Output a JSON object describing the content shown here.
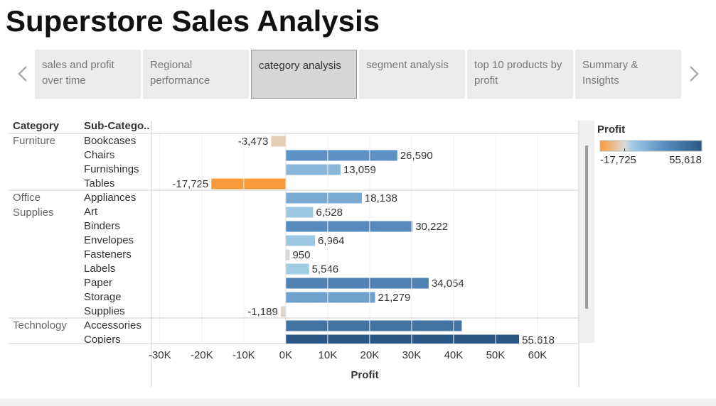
{
  "title": "Superstore Sales Analysis",
  "tabs": {
    "items": [
      "sales and profit over time",
      "Regional performance",
      "category analysis",
      "segment analysis",
      "top 10 products by profit",
      "Summary & Insights"
    ],
    "selected": 2
  },
  "chart_data": {
    "type": "bar",
    "orientation": "horizontal",
    "row_headers": [
      "Category",
      "Sub-Catego.."
    ],
    "x_label": "Profit",
    "groups": [
      {
        "name": "Furniture",
        "categories": [
          "Bookcases",
          "Chairs",
          "Furnishings",
          "Tables"
        ],
        "values": [
          -3473,
          26590,
          13059,
          -17725
        ],
        "value_labels": [
          "-3,473",
          "26,590",
          "13,059",
          "-17,725"
        ]
      },
      {
        "name": "Office Supplies",
        "categories": [
          "Appliances",
          "Art",
          "Binders",
          "Envelopes",
          "Fasteners",
          "Labels",
          "Paper",
          "Storage",
          "Supplies"
        ],
        "values": [
          18138,
          6528,
          30222,
          6964,
          950,
          5546,
          34054,
          21279,
          -1189
        ],
        "value_labels": [
          "18,138",
          "6,528",
          "30,222",
          "6,964",
          "950",
          "5,546",
          "34,054",
          "21,279",
          "-1,189"
        ]
      },
      {
        "name": "Technology",
        "categories": [
          "Accessories",
          "Copiers"
        ],
        "values": [
          41937,
          55618
        ],
        "value_labels": [
          null,
          "55,618"
        ]
      }
    ],
    "xlim": [
      -32000,
      70000
    ],
    "xticks": [
      {
        "value": -30000,
        "label": "-30K"
      },
      {
        "value": -20000,
        "label": "-20K"
      },
      {
        "value": -10000,
        "label": "-10K"
      },
      {
        "value": 0,
        "label": "0K"
      },
      {
        "value": 10000,
        "label": "10K"
      },
      {
        "value": 20000,
        "label": "20K"
      },
      {
        "value": 30000,
        "label": "30K"
      },
      {
        "value": 40000,
        "label": "40K"
      },
      {
        "value": 50000,
        "label": "50K"
      },
      {
        "value": 60000,
        "label": "60K"
      }
    ],
    "grid": true,
    "legend": {
      "title": "Profit",
      "min": {
        "value": -17725,
        "label": "-17,725"
      },
      "max": {
        "value": 55618,
        "label": "55,618"
      },
      "colors": [
        "#f89a3a",
        "#dddad5",
        "#9fcbe5",
        "#5b8fc2",
        "#2a5783"
      ]
    }
  }
}
